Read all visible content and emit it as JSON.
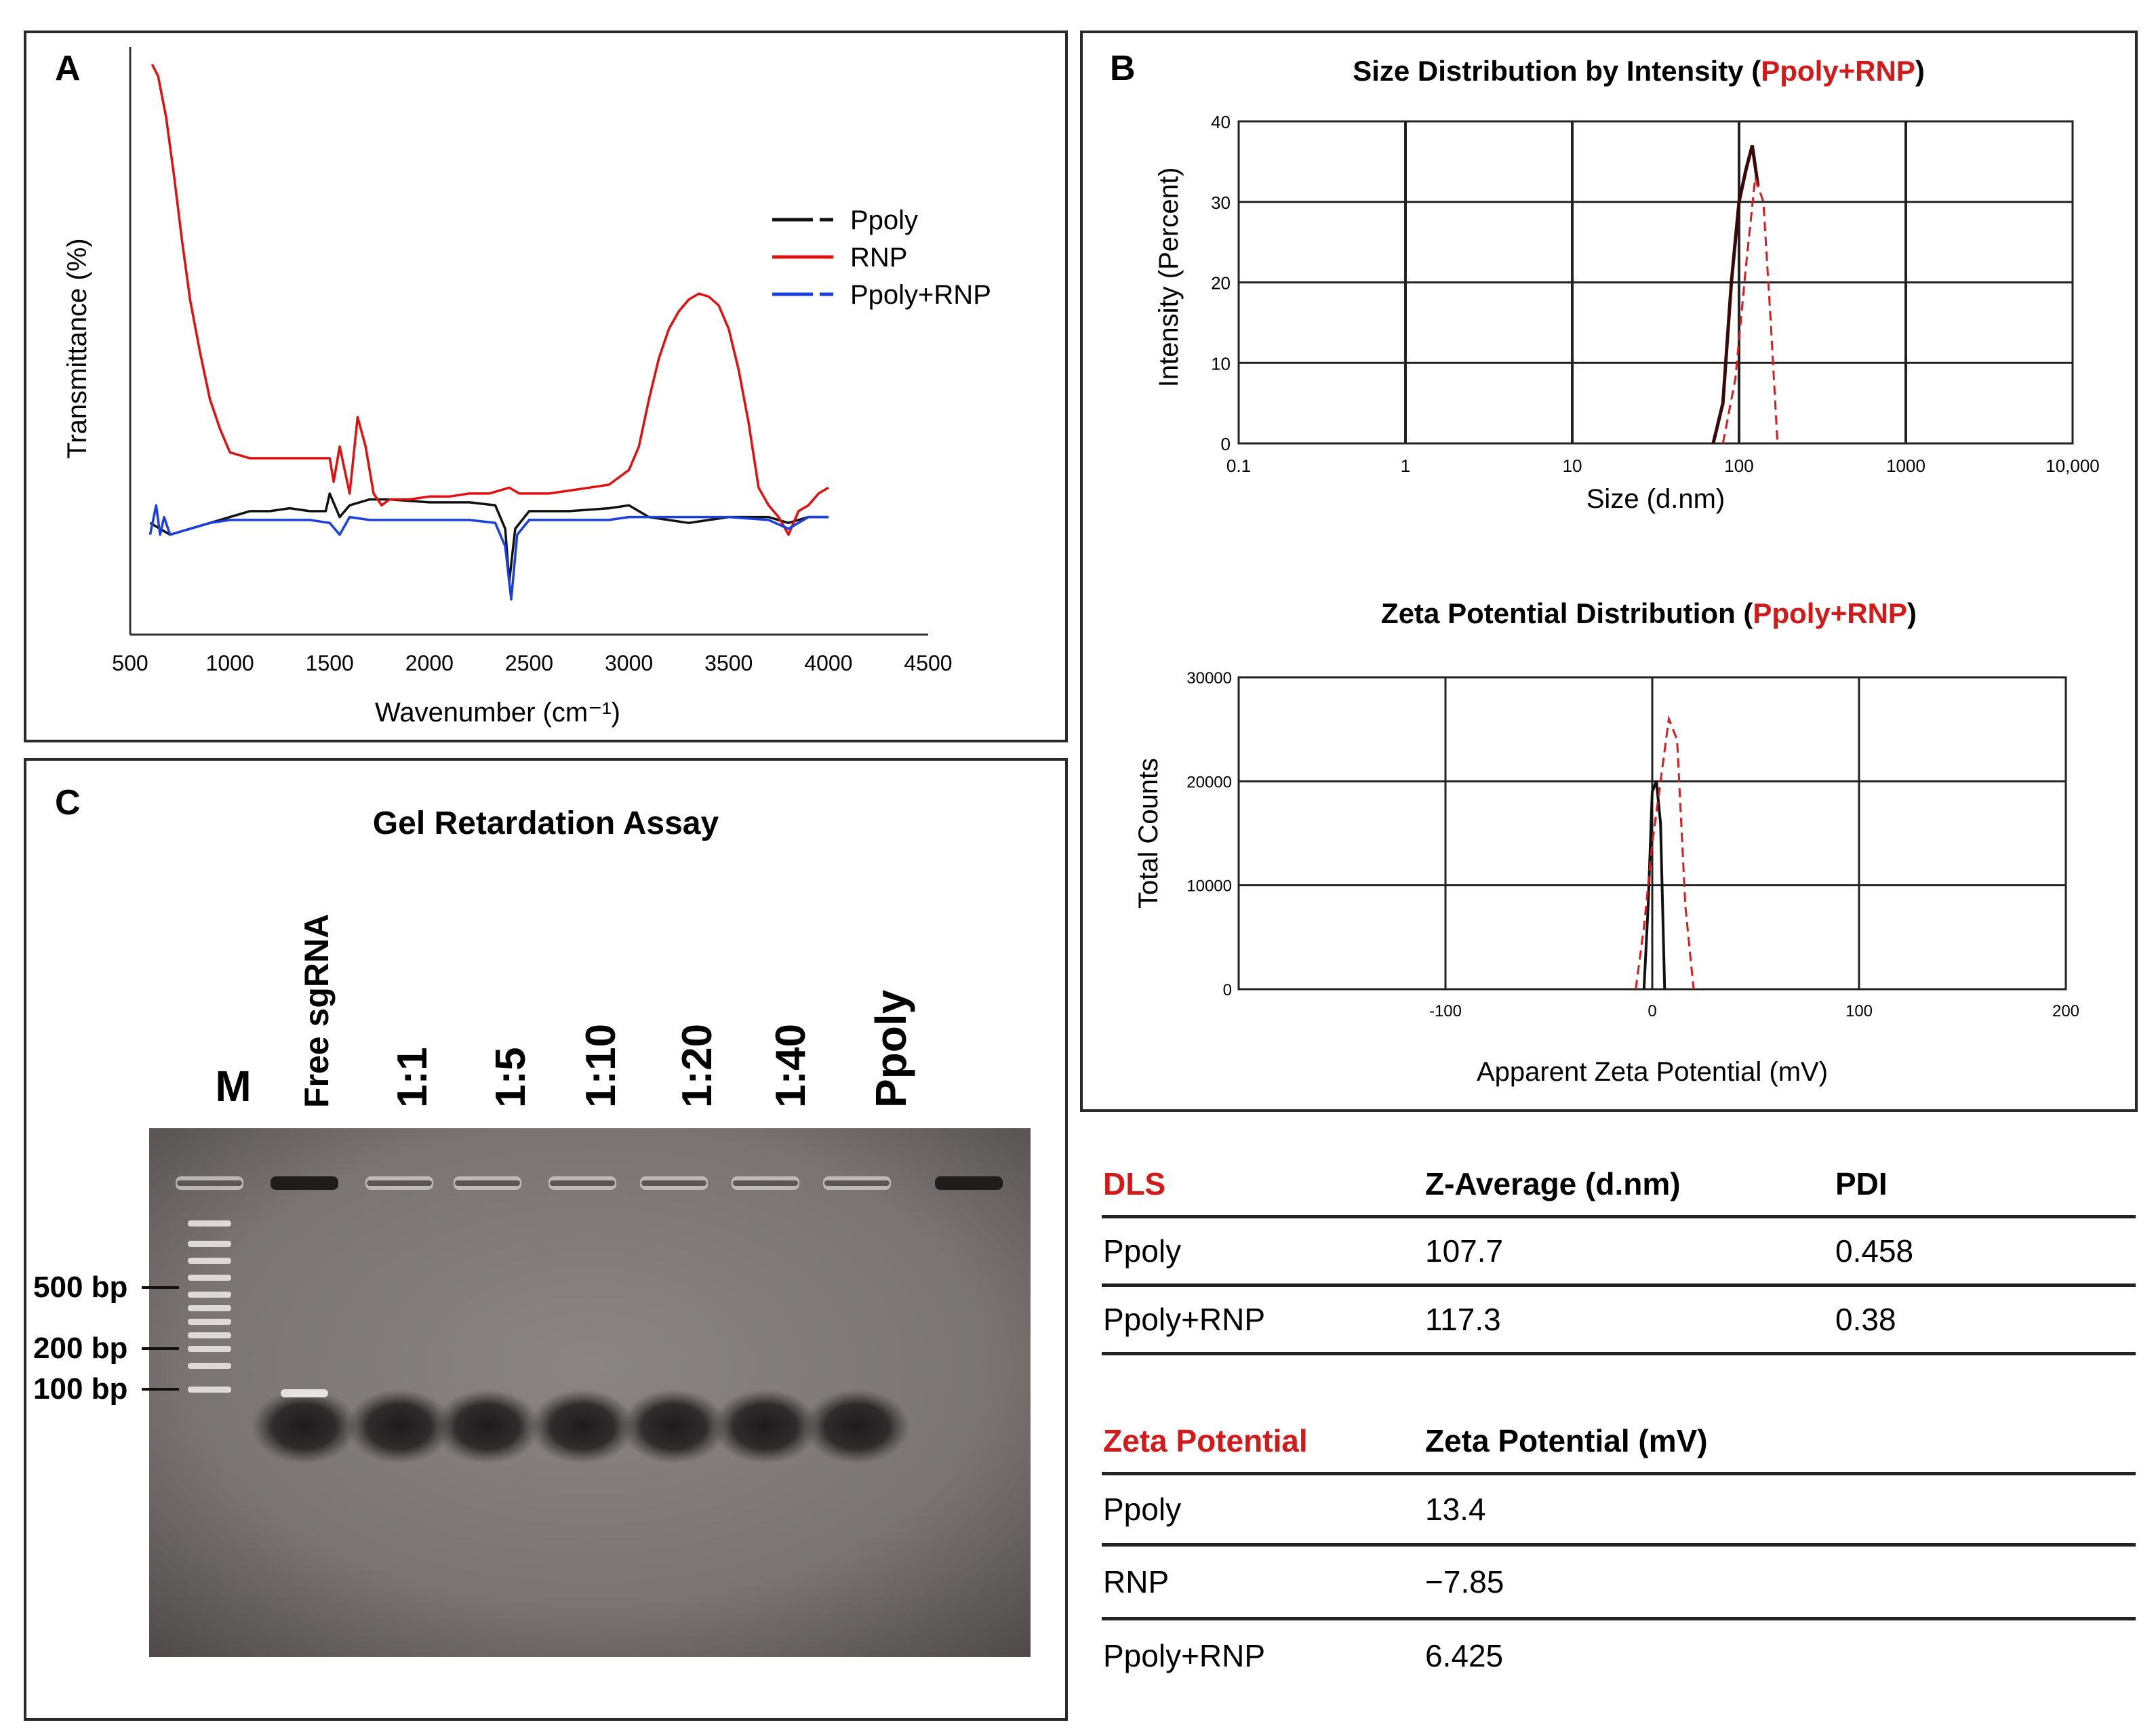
{
  "panels": {
    "a_label": "A",
    "b_label": "B",
    "c_label": "C"
  },
  "chart_data": [
    {
      "id": "ftir",
      "type": "line",
      "title": "",
      "xlabel": "Wavenumber (cm⁻¹)",
      "ylabel": "Transmittance (%)",
      "xlim": [
        500,
        4500
      ],
      "ylim": [
        0,
        100
      ],
      "xticks": [
        500,
        1000,
        1500,
        2000,
        2500,
        3000,
        3500,
        4000,
        4500
      ],
      "legend_position": "top-right",
      "series": [
        {
          "name": "Ppoly",
          "color": "#111111",
          "x": [
            600,
            700,
            800,
            900,
            1000,
            1100,
            1200,
            1300,
            1400,
            1480,
            1500,
            1550,
            1600,
            1700,
            1800,
            2000,
            2200,
            2330,
            2380,
            2400,
            2430,
            2500,
            2700,
            2900,
            3000,
            3100,
            3300,
            3500,
            3700,
            3800,
            3900,
            4000
          ],
          "y": [
            19,
            17,
            18,
            19,
            20,
            21,
            21,
            21.5,
            21,
            21,
            24,
            20,
            22,
            23,
            23,
            22.5,
            22.5,
            22,
            18,
            9,
            18,
            21,
            21,
            21.5,
            22,
            20,
            19,
            20,
            20,
            19,
            20,
            20
          ]
        },
        {
          "name": "RNP",
          "color": "#e01010",
          "x": [
            610,
            640,
            680,
            720,
            760,
            800,
            850,
            900,
            950,
            1000,
            1100,
            1200,
            1300,
            1400,
            1500,
            1520,
            1550,
            1600,
            1640,
            1680,
            1720,
            1760,
            1800,
            1900,
            2000,
            2100,
            2200,
            2300,
            2350,
            2400,
            2450,
            2500,
            2600,
            2700,
            2800,
            2900,
            3000,
            3050,
            3100,
            3150,
            3200,
            3250,
            3300,
            3350,
            3400,
            3450,
            3500,
            3550,
            3600,
            3650,
            3700,
            3750,
            3800,
            3850,
            3900,
            3950,
            4000
          ],
          "y": [
            97,
            95,
            88,
            78,
            67,
            57,
            48,
            40,
            35,
            31,
            30,
            30,
            30,
            30,
            30,
            26,
            32,
            24,
            37,
            32,
            24,
            22,
            23,
            23,
            23.5,
            23.5,
            24,
            24,
            24.5,
            25,
            24,
            24,
            24,
            24.5,
            25,
            25.5,
            28,
            32,
            40,
            47,
            52,
            55,
            57,
            58,
            57.5,
            56,
            52,
            45,
            36,
            25,
            22,
            20,
            17,
            21,
            22,
            24,
            25
          ]
        },
        {
          "name": "Ppoly+RNP",
          "color": "#1a3fe0",
          "x": [
            600,
            630,
            650,
            670,
            700,
            800,
            900,
            1000,
            1100,
            1200,
            1300,
            1400,
            1500,
            1550,
            1600,
            1700,
            1800,
            2000,
            2200,
            2330,
            2380,
            2410,
            2440,
            2500,
            2700,
            2900,
            3000,
            3200,
            3400,
            3500,
            3700,
            3800,
            3900,
            4000
          ],
          "y": [
            17,
            22,
            17,
            20,
            17,
            18,
            19,
            19.5,
            19.5,
            19.5,
            19.5,
            19.5,
            19,
            17,
            20,
            19.5,
            19.5,
            19.5,
            19.5,
            19,
            15,
            6,
            17,
            19.5,
            19.5,
            19.5,
            20,
            20,
            20,
            20,
            19.5,
            18,
            20,
            20
          ]
        }
      ]
    },
    {
      "id": "dls",
      "type": "line",
      "title_parts": [
        "Size Distribution by Intensity (",
        "Ppoly+RNP",
        ")"
      ],
      "xlabel": "Size (d.nm)",
      "ylabel": "Intensity (Percent)",
      "xscale": "log",
      "xlim": [
        0.1,
        10000
      ],
      "ylim": [
        0,
        40
      ],
      "xticks": [
        0.1,
        1,
        10,
        100,
        1000,
        10000
      ],
      "xtick_labels": [
        "0.1",
        "1",
        "10",
        "100",
        "1000",
        "10,000"
      ],
      "yticks": [
        0,
        10,
        20,
        30,
        40
      ],
      "series": [
        {
          "name": "Ppoly",
          "color": "#3a0a0a",
          "x": [
            70,
            80,
            90,
            100,
            110,
            120,
            130
          ],
          "y": [
            0,
            5,
            20,
            30,
            34,
            37,
            32
          ]
        },
        {
          "name": "Ppoly+RNP",
          "color": "#d02020",
          "x": [
            80,
            95,
            110,
            125,
            140,
            155,
            170
          ],
          "y": [
            0,
            8,
            22,
            33,
            30,
            15,
            0
          ]
        }
      ]
    },
    {
      "id": "zeta",
      "type": "line",
      "title_parts": [
        "Zeta Potential Distribution (",
        "Ppoly+RNP",
        ")"
      ],
      "xlabel": "Apparent Zeta Potential (mV)",
      "ylabel": "Total Counts",
      "xlim": [
        -200,
        200
      ],
      "ylim": [
        0,
        30000
      ],
      "xticks": [
        -100,
        0,
        100,
        200
      ],
      "xtick_labels": [
        "-100",
        "0",
        "100",
        "200"
      ],
      "yticks": [
        0,
        10000,
        20000,
        30000
      ],
      "series": [
        {
          "name": "Ppoly",
          "color": "#111111",
          "x": [
            -4,
            -2,
            0,
            2,
            4,
            6
          ],
          "y": [
            0,
            8000,
            19000,
            20000,
            16000,
            0
          ]
        },
        {
          "name": "Ppoly+RNP",
          "color": "#d02020",
          "x": [
            -8,
            -4,
            0,
            4,
            8,
            12,
            16,
            20
          ],
          "y": [
            0,
            6000,
            14000,
            20000,
            26000,
            24000,
            8000,
            0
          ]
        }
      ]
    }
  ],
  "gel": {
    "title": "Gel Retardation Assay",
    "lane_labels": [
      "M",
      "Free sgRNA",
      "1:1",
      "1:5",
      "1:10",
      "1:20",
      "1:40",
      "Ppoly"
    ],
    "markers": [
      "500 bp",
      "200 bp",
      "100 bp"
    ]
  },
  "table": {
    "dls": {
      "header": [
        "DLS",
        "Z-Average (d.nm)",
        "PDI"
      ],
      "rows": [
        [
          "Ppoly",
          "107.7",
          "0.458"
        ],
        [
          "Ppoly+RNP",
          "117.3",
          "0.38"
        ]
      ]
    },
    "zeta": {
      "header": [
        "Zeta Potential",
        "Zeta Potential (mV)"
      ],
      "rows": [
        [
          "Ppoly",
          "13.4"
        ],
        [
          "RNP",
          "−7.85"
        ],
        [
          "Ppoly+RNP",
          "6.425"
        ]
      ]
    }
  }
}
